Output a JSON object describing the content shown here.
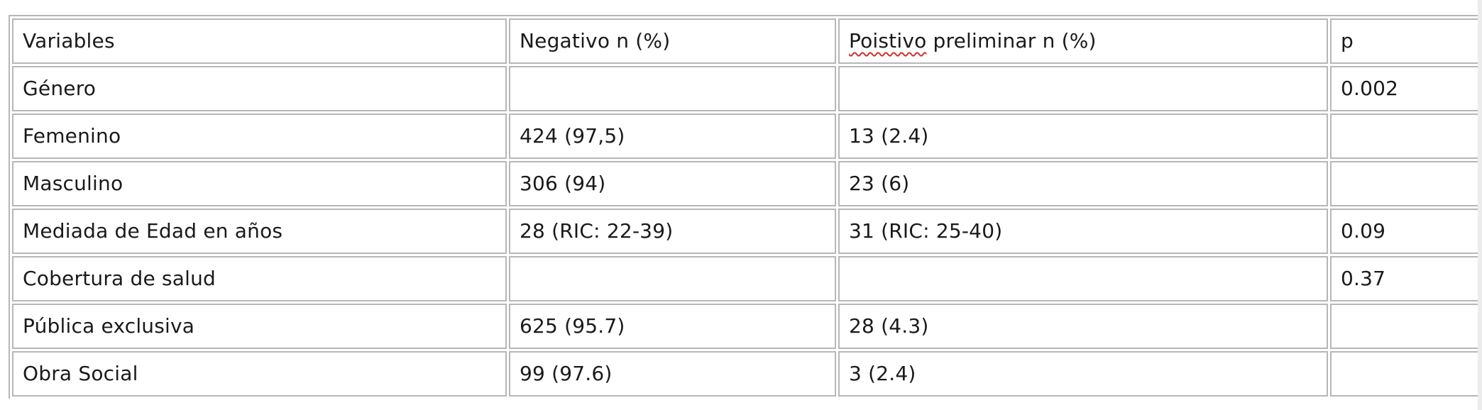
{
  "table": {
    "header": {
      "variables": "Variables",
      "negative": "Negativo n (%)",
      "positive_word": "Poistivo",
      "positive_rest": " preliminar n (%)",
      "p": "p"
    },
    "rows": [
      {
        "variable": "Género",
        "negative": "",
        "positive": "",
        "p": "0.002"
      },
      {
        "variable": "Femenino",
        "negative": "424 (97,5)",
        "positive": "13 (2.4)",
        "p": ""
      },
      {
        "variable": "Masculino",
        "negative": "306 (94)",
        "positive": "23 (6)",
        "p": ""
      },
      {
        "variable": "Mediada de Edad en años",
        "negative": "28 (RIC: 22-39)",
        "positive": "31 (RIC: 25-40)",
        "p": "0.09"
      },
      {
        "variable": "Cobertura de salud",
        "negative": "",
        "positive": "",
        "p": "0.37"
      },
      {
        "variable": "Pública exclusiva",
        "negative": "625 (95.7)",
        "positive": "28 (4.3)",
        "p": ""
      },
      {
        "variable": "Obra Social",
        "negative": "99 (97.6)",
        "positive": "3 (2.4)",
        "p": ""
      }
    ]
  }
}
